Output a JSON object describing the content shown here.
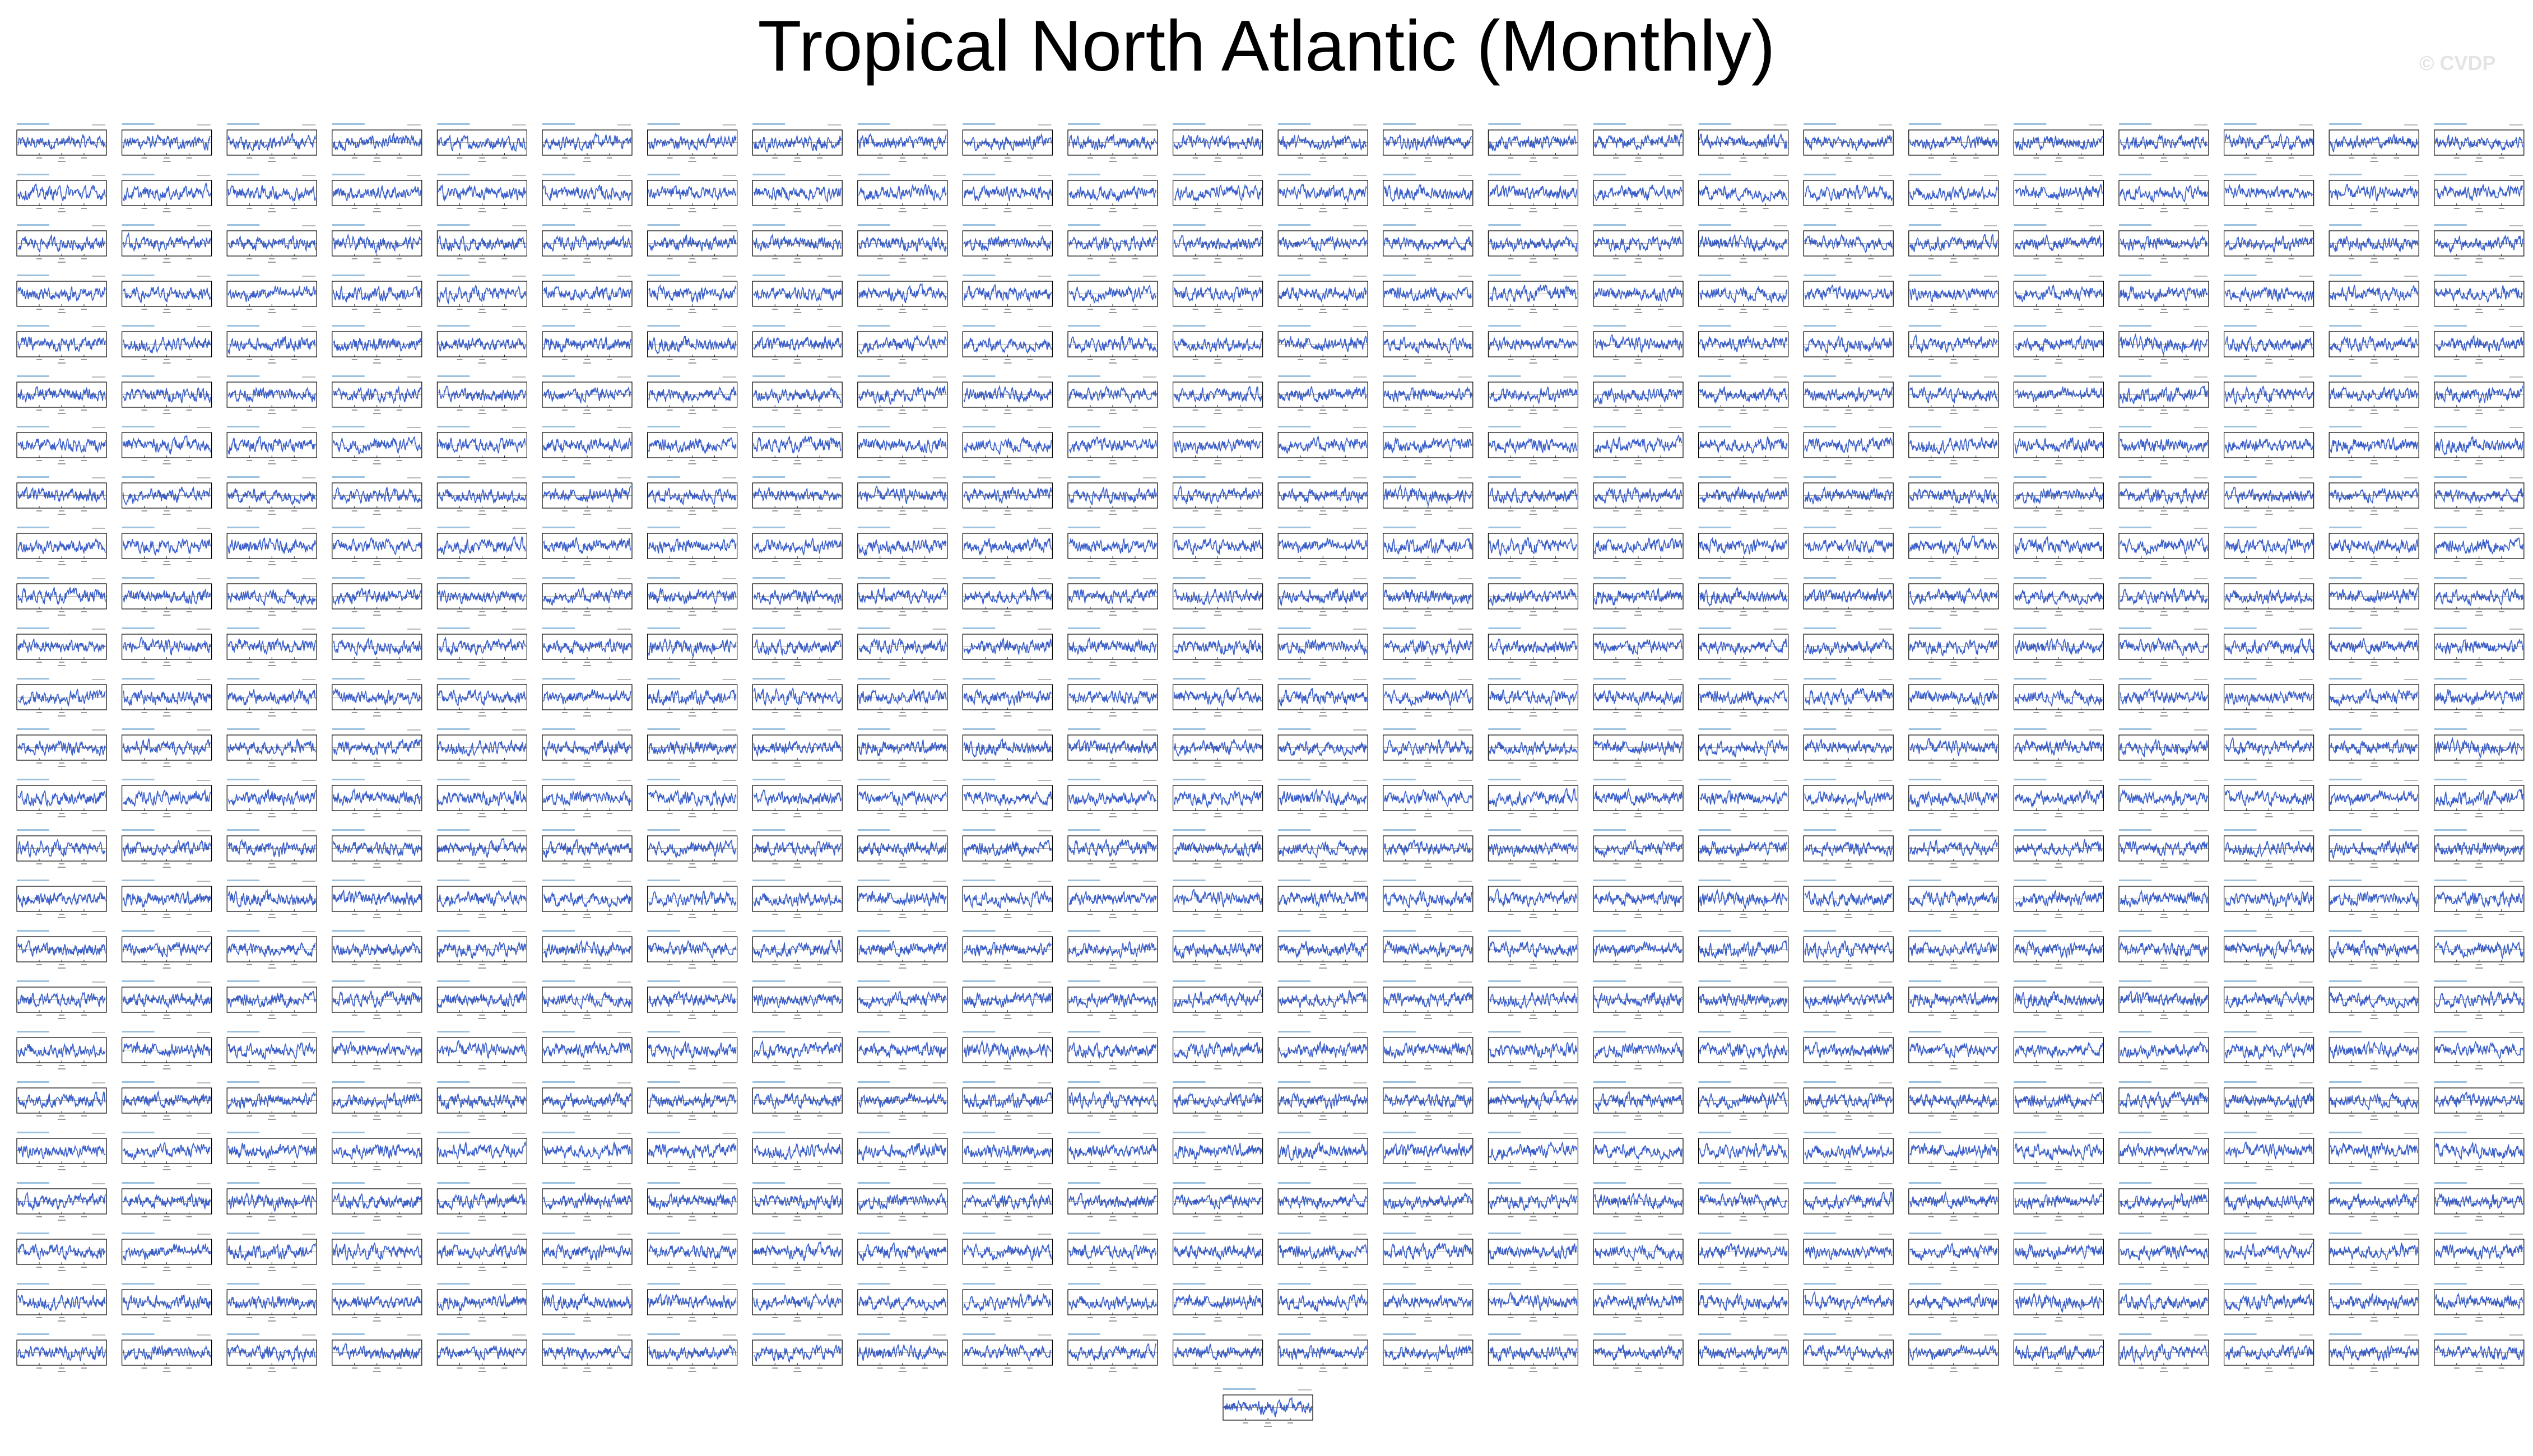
{
  "title": "Tropical North Atlantic (Monthly)",
  "watermark": "© CVDP",
  "colors": {
    "line": "#3a5fcd",
    "frame": "#000000",
    "label": "#4a90c4"
  },
  "chart_data": {
    "type": "line",
    "title": "Tropical North Atlantic (Monthly)",
    "layout": "small multiples grid of time series panels",
    "rows": 25,
    "columns": 24,
    "extra_panels_below": 1,
    "panel_count": 601,
    "xlabel": "Year",
    "ylabel": "",
    "ylim": [
      -1.5,
      1.5
    ],
    "grid": false,
    "legend": "none",
    "series_color": "#3a5fcd",
    "note_values": "panel text and series values are too small to read at this resolution; only structure is reproduced"
  }
}
